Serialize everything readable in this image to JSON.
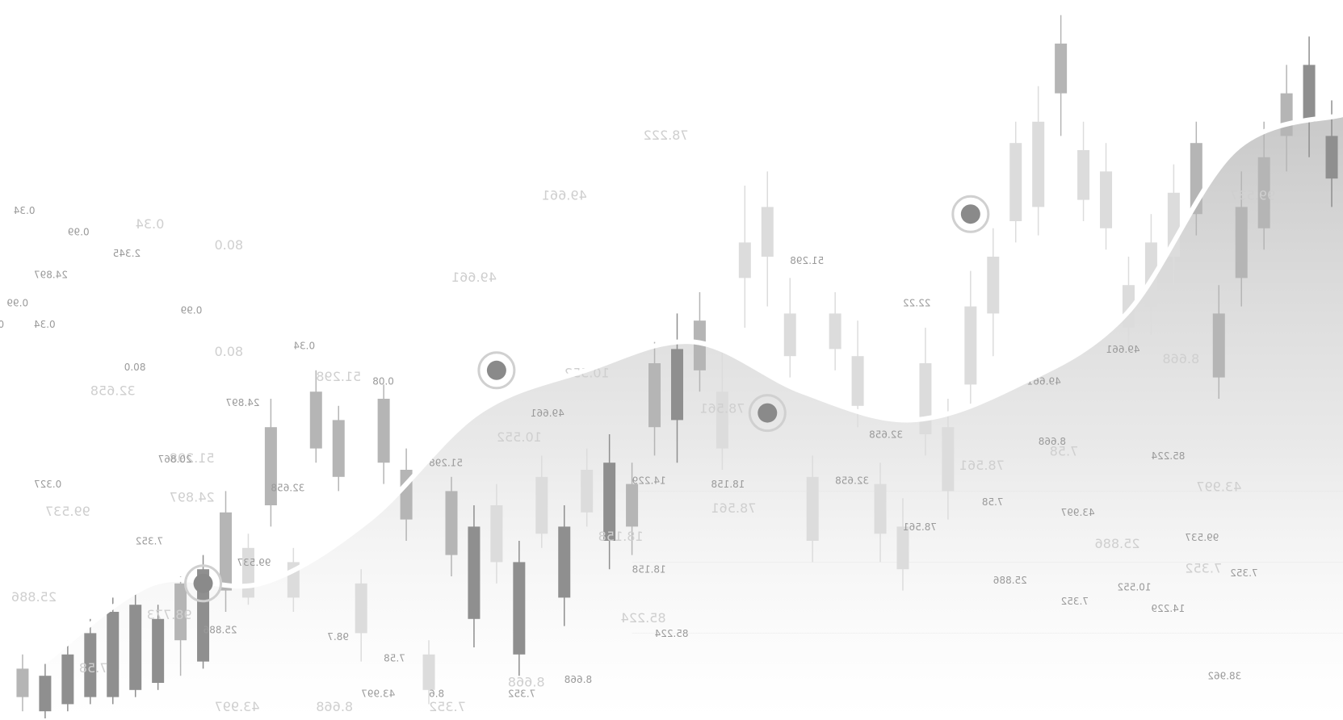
{
  "colors": {
    "background": "#ffffff",
    "candle_dark": "#8f8f8f",
    "candle_mid": "#b5b5b5",
    "candle_light": "#dcdcdc",
    "area_fill": "#c9c9c9",
    "curve": "#ffffff",
    "marker": "#8a8a8a",
    "label": "#9a9a9a",
    "label_faint": "#cfcfcf",
    "grid": "#eeeeee"
  },
  "chart_data": {
    "type": "candlestick",
    "title": "",
    "xlabel": "",
    "ylabel": "",
    "grid": true,
    "ylim": [
      0,
      100
    ],
    "area_curve": {
      "values": [
        8,
        19,
        19,
        28,
        43,
        49,
        53,
        46,
        42,
        47,
        57,
        80,
        85
      ]
    },
    "markers": [
      {
        "x": 9,
        "y": 19
      },
      {
        "x": 22,
        "y": 49
      },
      {
        "x": 34,
        "y": 43
      },
      {
        "x": 43,
        "y": 71
      }
    ],
    "candles": [
      {
        "x": 1,
        "o": 3,
        "c": 7,
        "h": 9,
        "l": 1,
        "shade": "mid"
      },
      {
        "x": 2,
        "o": 1,
        "c": 6,
        "h": 8,
        "l": 0,
        "shade": "dark"
      },
      {
        "x": 3,
        "o": 2,
        "c": 9,
        "h": 11,
        "l": 1,
        "shade": "dark"
      },
      {
        "x": 4,
        "o": 3,
        "c": 12,
        "h": 14,
        "l": 2,
        "shade": "dark"
      },
      {
        "x": 5,
        "o": 3,
        "c": 15,
        "h": 17,
        "l": 2,
        "shade": "dark"
      },
      {
        "x": 6,
        "o": 4,
        "c": 16,
        "h": 18,
        "l": 3,
        "shade": "dark"
      },
      {
        "x": 7,
        "o": 5,
        "c": 14,
        "h": 16,
        "l": 4,
        "shade": "dark"
      },
      {
        "x": 8,
        "o": 11,
        "c": 19,
        "h": 20,
        "l": 6,
        "shade": "mid"
      },
      {
        "x": 9,
        "o": 8,
        "c": 21,
        "h": 23,
        "l": 7,
        "shade": "dark"
      },
      {
        "x": 10,
        "o": 18,
        "c": 29,
        "h": 32,
        "l": 15,
        "shade": "mid"
      },
      {
        "x": 11,
        "o": 17,
        "c": 24,
        "h": 26,
        "l": 16,
        "shade": "light"
      },
      {
        "x": 12,
        "o": 30,
        "c": 41,
        "h": 45,
        "l": 27,
        "shade": "mid"
      },
      {
        "x": 13,
        "o": 17,
        "c": 22,
        "h": 24,
        "l": 15,
        "shade": "light"
      },
      {
        "x": 14,
        "o": 38,
        "c": 46,
        "h": 49,
        "l": 36,
        "shade": "mid"
      },
      {
        "x": 15,
        "o": 34,
        "c": 42,
        "h": 44,
        "l": 32,
        "shade": "mid"
      },
      {
        "x": 16,
        "o": 12,
        "c": 19,
        "h": 21,
        "l": 8,
        "shade": "light"
      },
      {
        "x": 17,
        "o": 36,
        "c": 45,
        "h": 47,
        "l": 33,
        "shade": "mid"
      },
      {
        "x": 18,
        "o": 28,
        "c": 35,
        "h": 38,
        "l": 25,
        "shade": "mid"
      },
      {
        "x": 19,
        "o": 4,
        "c": 9,
        "h": 11,
        "l": 2,
        "shade": "light"
      },
      {
        "x": 20,
        "o": 23,
        "c": 32,
        "h": 34,
        "l": 20,
        "shade": "mid"
      },
      {
        "x": 21,
        "o": 14,
        "c": 27,
        "h": 30,
        "l": 10,
        "shade": "dark"
      },
      {
        "x": 22,
        "o": 22,
        "c": 30,
        "h": 33,
        "l": 19,
        "shade": "light"
      },
      {
        "x": 23,
        "o": 9,
        "c": 22,
        "h": 25,
        "l": 6,
        "shade": "dark"
      },
      {
        "x": 24,
        "o": 26,
        "c": 34,
        "h": 37,
        "l": 24,
        "shade": "light"
      },
      {
        "x": 25,
        "o": 17,
        "c": 27,
        "h": 30,
        "l": 13,
        "shade": "dark"
      },
      {
        "x": 26,
        "o": 29,
        "c": 35,
        "h": 38,
        "l": 27,
        "shade": "light"
      },
      {
        "x": 27,
        "o": 25,
        "c": 36,
        "h": 40,
        "l": 21,
        "shade": "dark"
      },
      {
        "x": 28,
        "o": 27,
        "c": 33,
        "h": 36,
        "l": 23,
        "shade": "mid"
      },
      {
        "x": 29,
        "o": 41,
        "c": 50,
        "h": 53,
        "l": 37,
        "shade": "mid"
      },
      {
        "x": 30,
        "o": 42,
        "c": 52,
        "h": 57,
        "l": 36,
        "shade": "dark"
      },
      {
        "x": 31,
        "o": 49,
        "c": 56,
        "h": 60,
        "l": 46,
        "shade": "mid"
      },
      {
        "x": 32,
        "o": 38,
        "c": 46,
        "h": 52,
        "l": 35,
        "shade": "light"
      },
      {
        "x": 33,
        "o": 62,
        "c": 67,
        "h": 75,
        "l": 55,
        "shade": "light"
      },
      {
        "x": 34,
        "o": 65,
        "c": 72,
        "h": 77,
        "l": 58,
        "shade": "light"
      },
      {
        "x": 35,
        "o": 51,
        "c": 57,
        "h": 62,
        "l": 48,
        "shade": "light"
      },
      {
        "x": 36,
        "o": 25,
        "c": 34,
        "h": 37,
        "l": 22,
        "shade": "light"
      },
      {
        "x": 37,
        "o": 52,
        "c": 57,
        "h": 60,
        "l": 49,
        "shade": "light"
      },
      {
        "x": 38,
        "o": 44,
        "c": 51,
        "h": 56,
        "l": 41,
        "shade": "light"
      },
      {
        "x": 39,
        "o": 26,
        "c": 33,
        "h": 36,
        "l": 22,
        "shade": "light"
      },
      {
        "x": 40,
        "o": 21,
        "c": 27,
        "h": 31,
        "l": 18,
        "shade": "light"
      },
      {
        "x": 41,
        "o": 40,
        "c": 50,
        "h": 55,
        "l": 37,
        "shade": "light"
      },
      {
        "x": 42,
        "o": 32,
        "c": 41,
        "h": 45,
        "l": 28,
        "shade": "light"
      },
      {
        "x": 43,
        "o": 47,
        "c": 58,
        "h": 63,
        "l": 44,
        "shade": "light"
      },
      {
        "x": 44,
        "o": 57,
        "c": 65,
        "h": 69,
        "l": 51,
        "shade": "light"
      },
      {
        "x": 45,
        "o": 70,
        "c": 81,
        "h": 84,
        "l": 67,
        "shade": "light"
      },
      {
        "x": 46,
        "o": 72,
        "c": 84,
        "h": 89,
        "l": 68,
        "shade": "light"
      },
      {
        "x": 47,
        "o": 88,
        "c": 95,
        "h": 99,
        "l": 82,
        "shade": "mid"
      },
      {
        "x": 48,
        "o": 73,
        "c": 80,
        "h": 84,
        "l": 70,
        "shade": "light"
      },
      {
        "x": 49,
        "o": 69,
        "c": 77,
        "h": 81,
        "l": 66,
        "shade": "light"
      },
      {
        "x": 50,
        "o": 55,
        "c": 61,
        "h": 65,
        "l": 52,
        "shade": "light"
      },
      {
        "x": 51,
        "o": 58,
        "c": 67,
        "h": 71,
        "l": 54,
        "shade": "light"
      },
      {
        "x": 52,
        "o": 65,
        "c": 74,
        "h": 78,
        "l": 61,
        "shade": "light"
      },
      {
        "x": 53,
        "o": 71,
        "c": 81,
        "h": 84,
        "l": 68,
        "shade": "mid"
      },
      {
        "x": 54,
        "o": 48,
        "c": 57,
        "h": 61,
        "l": 45,
        "shade": "mid"
      },
      {
        "x": 55,
        "o": 62,
        "c": 72,
        "h": 77,
        "l": 58,
        "shade": "mid"
      },
      {
        "x": 56,
        "o": 69,
        "c": 79,
        "h": 84,
        "l": 66,
        "shade": "mid"
      },
      {
        "x": 57,
        "o": 82,
        "c": 88,
        "h": 92,
        "l": 77,
        "shade": "mid"
      },
      {
        "x": 58,
        "o": 84,
        "c": 92,
        "h": 96,
        "l": 79,
        "shade": "dark"
      },
      {
        "x": 59,
        "o": 76,
        "c": 82,
        "h": 87,
        "l": 72,
        "shade": "dark"
      }
    ],
    "labels": [
      {
        "text": "0.34",
        "x": 0.6,
        "y": 71,
        "faint": false
      },
      {
        "text": "0.99",
        "x": 3,
        "y": 68,
        "faint": false
      },
      {
        "text": "2.345",
        "x": 5,
        "y": 65,
        "faint": false
      },
      {
        "text": "24.897",
        "x": 1.5,
        "y": 62,
        "faint": false
      },
      {
        "text": "80.0",
        "x": 9.5,
        "y": 66,
        "faint": true
      },
      {
        "text": "0.34",
        "x": 6,
        "y": 69,
        "faint": true
      },
      {
        "text": "0.99",
        "x": 0.3,
        "y": 58,
        "faint": false
      },
      {
        "text": "0.3",
        "x": -0.5,
        "y": 55,
        "faint": false
      },
      {
        "text": "0.34",
        "x": 1.5,
        "y": 55,
        "faint": false
      },
      {
        "text": "0.99",
        "x": 8,
        "y": 57,
        "faint": false
      },
      {
        "text": "0.34",
        "x": 13,
        "y": 52,
        "faint": false
      },
      {
        "text": "80.0",
        "x": 9.5,
        "y": 51,
        "faint": true
      },
      {
        "text": "80.0",
        "x": 5.5,
        "y": 49,
        "faint": false
      },
      {
        "text": "0.08",
        "x": 16.5,
        "y": 47,
        "faint": false
      },
      {
        "text": "51.298",
        "x": 14,
        "y": 47.5,
        "faint": true
      },
      {
        "text": "32.658",
        "x": 4,
        "y": 45.5,
        "faint": true
      },
      {
        "text": "24.897",
        "x": 10,
        "y": 44,
        "faint": false
      },
      {
        "text": "51.298",
        "x": 7.5,
        "y": 36,
        "faint": true
      },
      {
        "text": "0.327",
        "x": 1.5,
        "y": 32.5,
        "faint": false
      },
      {
        "text": "20.867",
        "x": 7,
        "y": 36,
        "faint": false
      },
      {
        "text": "32.658",
        "x": 12,
        "y": 32,
        "faint": false
      },
      {
        "text": "24.897",
        "x": 7.5,
        "y": 30.5,
        "faint": true
      },
      {
        "text": "99.537",
        "x": 2,
        "y": 28.5,
        "faint": true
      },
      {
        "text": "7.352",
        "x": 6,
        "y": 24.5,
        "faint": false
      },
      {
        "text": "99.537",
        "x": 10.5,
        "y": 21.5,
        "faint": false
      },
      {
        "text": "25.886",
        "x": 0.5,
        "y": 16.5,
        "faint": true
      },
      {
        "text": "98.773",
        "x": 6.5,
        "y": 14,
        "faint": true
      },
      {
        "text": "25.886",
        "x": 9,
        "y": 12,
        "faint": false
      },
      {
        "text": "7.58",
        "x": 3.5,
        "y": 6.5,
        "faint": true
      },
      {
        "text": "98.7",
        "x": 14.5,
        "y": 11,
        "faint": false
      },
      {
        "text": "7.58",
        "x": 17,
        "y": 8,
        "faint": false
      },
      {
        "text": "43.997",
        "x": 9.5,
        "y": 1,
        "faint": true
      },
      {
        "text": "8.668",
        "x": 14,
        "y": 1,
        "faint": true
      },
      {
        "text": "43.997",
        "x": 16,
        "y": 3,
        "faint": false
      },
      {
        "text": "7.352",
        "x": 19,
        "y": 1,
        "faint": true
      },
      {
        "text": "8.6",
        "x": 19,
        "y": 3,
        "faint": false
      },
      {
        "text": "7.352",
        "x": 22.5,
        "y": 3,
        "faint": false
      },
      {
        "text": "8.668",
        "x": 22.5,
        "y": 4.5,
        "faint": true
      },
      {
        "text": "8.668",
        "x": 25,
        "y": 5,
        "faint": false
      },
      {
        "text": "85.224",
        "x": 27.5,
        "y": 13.5,
        "faint": true
      },
      {
        "text": "85.224",
        "x": 29,
        "y": 11.5,
        "faint": false
      },
      {
        "text": "18.158",
        "x": 28,
        "y": 20.5,
        "faint": false
      },
      {
        "text": "18.158",
        "x": 26.5,
        "y": 25,
        "faint": true
      },
      {
        "text": "14.229",
        "x": 28,
        "y": 33,
        "faint": false
      },
      {
        "text": "18.158",
        "x": 31.5,
        "y": 32.5,
        "faint": false
      },
      {
        "text": "78.561",
        "x": 31.5,
        "y": 29,
        "faint": true
      },
      {
        "text": "78.561",
        "x": 31,
        "y": 43,
        "faint": true
      },
      {
        "text": "32.658",
        "x": 38.5,
        "y": 39.5,
        "faint": false
      },
      {
        "text": "32.658",
        "x": 37,
        "y": 33,
        "faint": false
      },
      {
        "text": "51.298",
        "x": 35,
        "y": 64,
        "faint": false
      },
      {
        "text": "78.222",
        "x": 28.5,
        "y": 81.5,
        "faint": true
      },
      {
        "text": "49.661",
        "x": 24,
        "y": 73,
        "faint": true
      },
      {
        "text": "49.661",
        "x": 20,
        "y": 61.5,
        "faint": true
      },
      {
        "text": "49.661",
        "x": 23.5,
        "y": 42.5,
        "faint": false
      },
      {
        "text": "10.552",
        "x": 22,
        "y": 39,
        "faint": true
      },
      {
        "text": "10.552",
        "x": 25,
        "y": 48,
        "faint": true
      },
      {
        "text": "51.298",
        "x": 19,
        "y": 35.5,
        "faint": false
      },
      {
        "text": "22.22",
        "x": 40,
        "y": 58,
        "faint": false
      },
      {
        "text": "78.561",
        "x": 42.5,
        "y": 35,
        "faint": true
      },
      {
        "text": "7.58",
        "x": 43.5,
        "y": 30,
        "faint": false
      },
      {
        "text": "78.561",
        "x": 40,
        "y": 26.5,
        "faint": false
      },
      {
        "text": "43.997",
        "x": 47,
        "y": 28.5,
        "faint": false
      },
      {
        "text": "25.886",
        "x": 44,
        "y": 19,
        "faint": false
      },
      {
        "text": "25.886",
        "x": 48.5,
        "y": 24,
        "faint": true
      },
      {
        "text": "7.352",
        "x": 47,
        "y": 16,
        "faint": false
      },
      {
        "text": "10.552",
        "x": 49.5,
        "y": 18,
        "faint": false
      },
      {
        "text": "14.229",
        "x": 51,
        "y": 15,
        "faint": false
      },
      {
        "text": "7.352",
        "x": 52.5,
        "y": 20.5,
        "faint": true
      },
      {
        "text": "7.352",
        "x": 54.5,
        "y": 20,
        "faint": false
      },
      {
        "text": "99.537",
        "x": 52.5,
        "y": 25,
        "faint": false
      },
      {
        "text": "43.997",
        "x": 53,
        "y": 32,
        "faint": true
      },
      {
        "text": "85.224",
        "x": 51,
        "y": 36.5,
        "faint": false
      },
      {
        "text": "7.58",
        "x": 46.5,
        "y": 37,
        "faint": true
      },
      {
        "text": "8.668",
        "x": 46,
        "y": 38.5,
        "faint": false
      },
      {
        "text": "49.661",
        "x": 45.5,
        "y": 47,
        "faint": false
      },
      {
        "text": "8.668",
        "x": 51.5,
        "y": 50,
        "faint": true
      },
      {
        "text": "49.661",
        "x": 49,
        "y": 51.5,
        "faint": false
      },
      {
        "text": "38.962",
        "x": 53.5,
        "y": 5.5,
        "faint": false
      },
      {
        "text": "99.537",
        "x": 54.5,
        "y": 73,
        "faint": true
      }
    ]
  }
}
